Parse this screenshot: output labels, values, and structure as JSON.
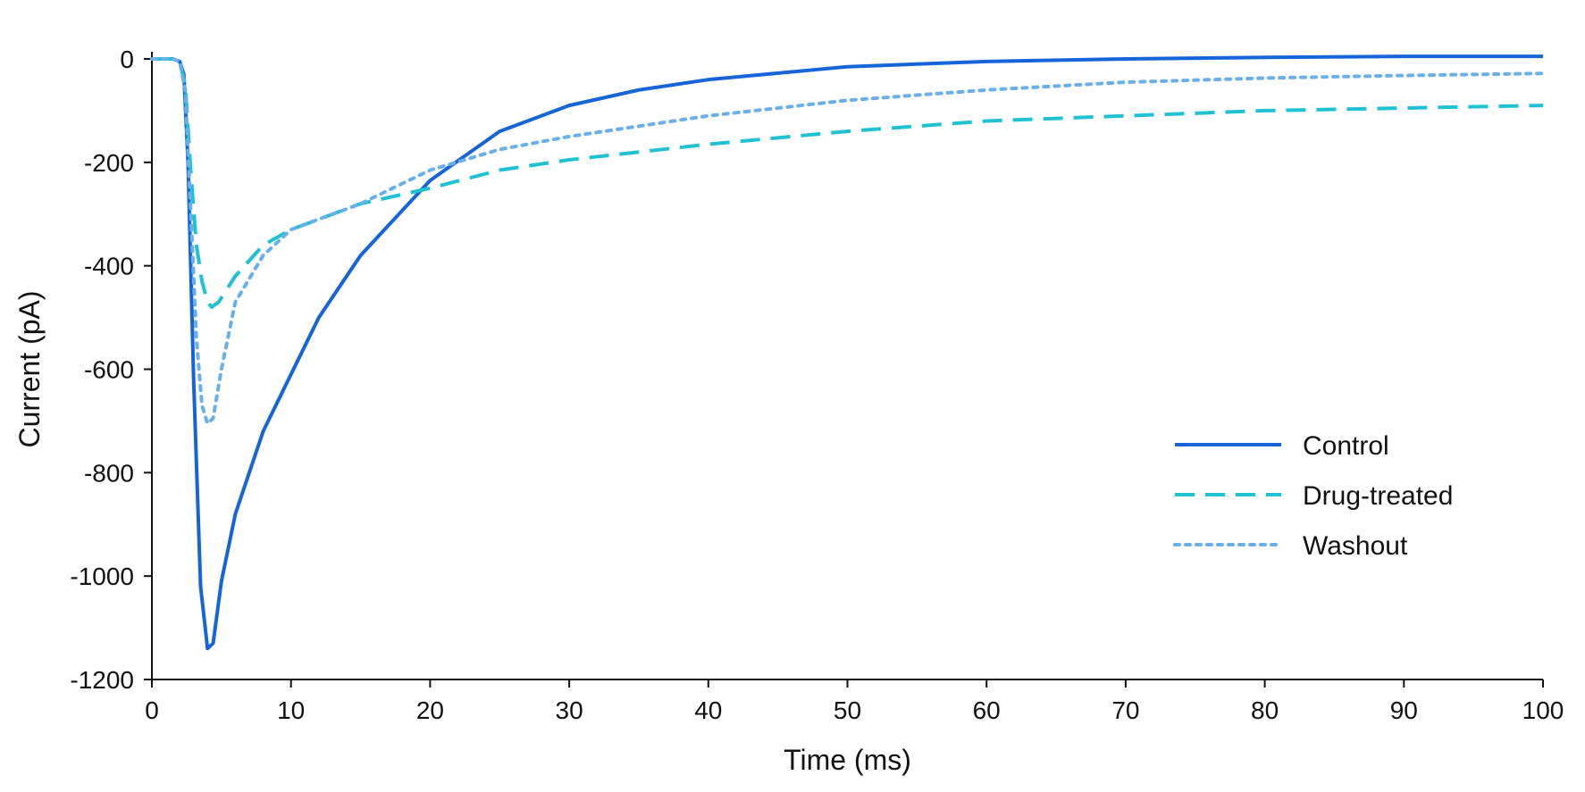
{
  "chart_data": {
    "type": "line",
    "title": "",
    "xlabel": "Time (ms)",
    "ylabel": "Current (pA)",
    "xlim": [
      0,
      100
    ],
    "ylim": [
      -1200,
      0
    ],
    "x_ticks": [
      0,
      10,
      20,
      30,
      40,
      50,
      60,
      70,
      80,
      90,
      100
    ],
    "y_ticks": [
      0,
      -200,
      -400,
      -600,
      -800,
      -1000,
      -1200
    ],
    "grid": false,
    "legend_position": "right",
    "series": [
      {
        "name": "Control",
        "color": "#1565d8",
        "style": "solid",
        "x": [
          0,
          1.5,
          2.0,
          2.3,
          2.6,
          3.0,
          3.5,
          4.0,
          4.4,
          5.0,
          6.0,
          8.0,
          10.0,
          12.0,
          15.0,
          20.0,
          25.0,
          30.0,
          35.0,
          40.0,
          50.0,
          60.0,
          70.0,
          80.0,
          90.0,
          100.0
        ],
        "y": [
          0,
          0,
          -5,
          -30,
          -200,
          -620,
          -1020,
          -1140,
          -1130,
          -1010,
          -880,
          -720,
          -610,
          -500,
          -380,
          -235,
          -140,
          -90,
          -60,
          -40,
          -15,
          -5,
          0,
          3,
          5,
          5
        ]
      },
      {
        "name": "Drug-treated",
        "color": "#1ec2d2",
        "style": "dashed",
        "x": [
          0,
          1.5,
          2.0,
          2.4,
          2.8,
          3.2,
          3.6,
          4.0,
          4.3,
          4.8,
          6.0,
          8.0,
          10.0,
          15.0,
          20.0,
          25.0,
          30.0,
          40.0,
          50.0,
          60.0,
          70.0,
          80.0,
          90.0,
          100.0
        ],
        "y": [
          0,
          0,
          -5,
          -50,
          -220,
          -360,
          -430,
          -470,
          -480,
          -470,
          -420,
          -360,
          -330,
          -280,
          -250,
          -215,
          -195,
          -165,
          -140,
          -120,
          -110,
          -100,
          -95,
          -90
        ]
      },
      {
        "name": "Washout",
        "color": "#6ab0e8",
        "style": "dotted",
        "x": [
          0,
          1.5,
          2.0,
          2.4,
          2.8,
          3.2,
          3.6,
          4.0,
          4.4,
          5.0,
          6.0,
          8.0,
          10.0,
          15.0,
          20.0,
          25.0,
          30.0,
          40.0,
          50.0,
          60.0,
          70.0,
          80.0,
          90.0,
          100.0
        ],
        "y": [
          0,
          0,
          -5,
          -60,
          -300,
          -540,
          -670,
          -705,
          -695,
          -600,
          -470,
          -380,
          -330,
          -280,
          -215,
          -175,
          -150,
          -110,
          -80,
          -60,
          -45,
          -37,
          -32,
          -28
        ]
      }
    ]
  }
}
